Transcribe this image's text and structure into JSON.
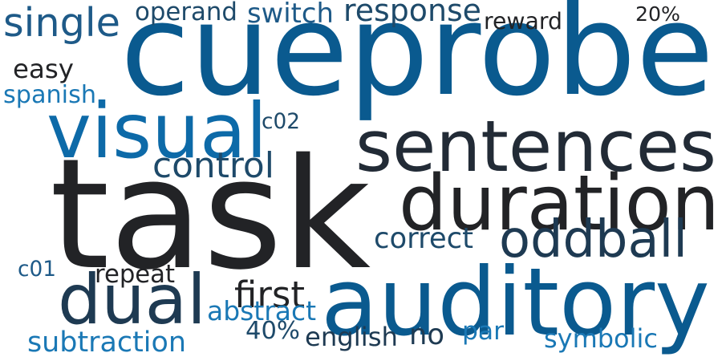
{
  "palette": {
    "dark": "#222326",
    "navy": "#1e3a52",
    "blue": "#0a5a8f",
    "mid_blue": "#0d6aa8",
    "bright_blue": "#1a78b5"
  },
  "words": [
    {
      "key": "cueprobe",
      "text": "cueprobe",
      "color": "#0a5a8f"
    },
    {
      "key": "task",
      "text": "task",
      "color": "#222326"
    },
    {
      "key": "auditory",
      "text": "auditory",
      "color": "#0a5a8f"
    },
    {
      "key": "sentences",
      "text": "sentences",
      "color": "#222b36"
    },
    {
      "key": "duration",
      "text": "duration",
      "color": "#222326"
    },
    {
      "key": "visual",
      "text": "visual",
      "color": "#0d6aa8"
    },
    {
      "key": "dual",
      "text": "dual",
      "color": "#1e3a52"
    },
    {
      "key": "oddball",
      "text": "oddball",
      "color": "#1e3a52"
    },
    {
      "key": "single",
      "text": "single",
      "color": "#1e5a88"
    },
    {
      "key": "response",
      "text": "response",
      "color": "#1e4a6a"
    },
    {
      "key": "control",
      "text": "control",
      "color": "#1e4a6a"
    },
    {
      "key": "operand",
      "text": "operand",
      "color": "#1e4a6a"
    },
    {
      "key": "switch",
      "text": "switch",
      "color": "#1e5a88"
    },
    {
      "key": "reward",
      "text": "reward",
      "color": "#222326"
    },
    {
      "key": "20%",
      "text": "20%",
      "color": "#222326"
    },
    {
      "key": "easy",
      "text": "easy",
      "color": "#222326"
    },
    {
      "key": "spanish",
      "text": "spanish",
      "color": "#1a78b5"
    },
    {
      "key": "c02",
      "text": "c02",
      "color": "#1e4a6a"
    },
    {
      "key": "correct",
      "text": "correct",
      "color": "#1e4a6a"
    },
    {
      "key": "c01",
      "text": "c01",
      "color": "#1e5a88"
    },
    {
      "key": "repeat",
      "text": "repeat",
      "color": "#222326"
    },
    {
      "key": "first",
      "text": "first",
      "color": "#222326"
    },
    {
      "key": "abstract",
      "text": "abstract",
      "color": "#1a78b5"
    },
    {
      "key": "40%",
      "text": "40%",
      "color": "#1e4a6a"
    },
    {
      "key": "english",
      "text": "english",
      "color": "#1e3a52"
    },
    {
      "key": "no",
      "text": "no",
      "color": "#1e3a52"
    },
    {
      "key": "par",
      "text": "par",
      "color": "#1a78b5"
    },
    {
      "key": "subtraction",
      "text": "subtraction",
      "color": "#1a78b5"
    },
    {
      "key": "symbolic",
      "text": "symbolic",
      "color": "#1a78b5"
    }
  ]
}
